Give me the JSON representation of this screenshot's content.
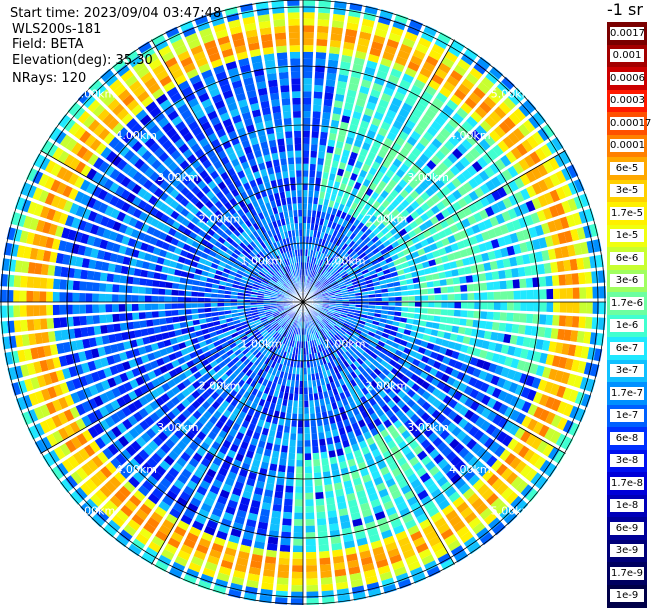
{
  "header": {
    "start_time": "Start time: 2023/09/04 03:47:48",
    "instrument": "WLS200s-181",
    "field": "Field: BETA",
    "elevation": "Elevation(deg): 35.30",
    "nrays": "NRays: 120"
  },
  "colorbar": {
    "unit": "-1 sr",
    "labels": [
      "0.0017",
      "0.001",
      "0.0006",
      "0.0003",
      "0.00017",
      "0.0001",
      "6e-5",
      "3e-5",
      "1.7e-5",
      "1e-5",
      "6e-6",
      "3e-6",
      "1.7e-6",
      "1e-6",
      "6e-7",
      "3e-7",
      "1.7e-7",
      "1e-7",
      "6e-8",
      "3e-8",
      "1.7e-8",
      "1e-8",
      "6e-9",
      "3e-9",
      "1.7e-9",
      "1e-9"
    ],
    "colors": [
      "#7a0000",
      "#a30000",
      "#cc0000",
      "#ff1a00",
      "#ff5000",
      "#ff8000",
      "#ffa800",
      "#ffd000",
      "#fff000",
      "#f0ff10",
      "#c8ff30",
      "#a0ff60",
      "#6cffa0",
      "#40ffd0",
      "#20e8ff",
      "#10c0ff",
      "#0090ff",
      "#0060ff",
      "#0030ff",
      "#0010f0",
      "#0000d8",
      "#0000b8",
      "#000098",
      "#000078",
      "#000060",
      "#000048"
    ]
  },
  "range_rings": {
    "labels": [
      "1.00km",
      "2.00km",
      "3.00km",
      "4.00km",
      "5.00km"
    ]
  },
  "palette": {
    "background": "#ffffff",
    "grid": "#000000",
    "ray_gap": "#ffffff"
  }
}
